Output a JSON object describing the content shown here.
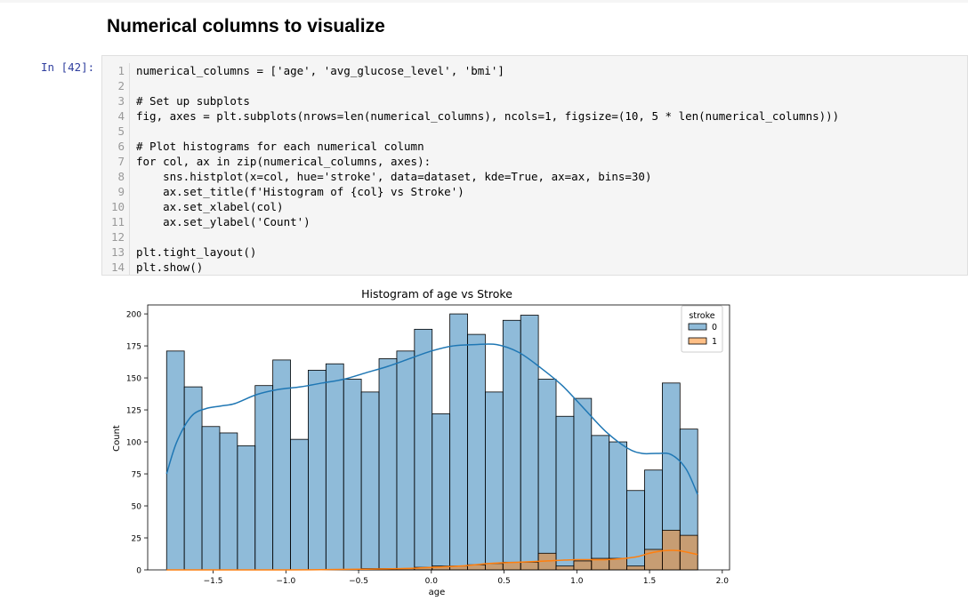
{
  "notebook": {
    "heading": "Numerical columns to visualize",
    "prompt": "In [42]:"
  },
  "code_cell": {
    "lines": [
      {
        "num": "1",
        "text": "numerical_columns = ['age', 'avg_glucose_level', 'bmi']"
      },
      {
        "num": "2",
        "text": ""
      },
      {
        "num": "3",
        "text": "# Set up subplots"
      },
      {
        "num": "4",
        "text": "fig, axes = plt.subplots(nrows=len(numerical_columns), ncols=1, figsize=(10, 5 * len(numerical_columns)))"
      },
      {
        "num": "5",
        "text": ""
      },
      {
        "num": "6",
        "text": "# Plot histograms for each numerical column"
      },
      {
        "num": "7",
        "text": "for col, ax in zip(numerical_columns, axes):"
      },
      {
        "num": "8",
        "text": "    sns.histplot(x=col, hue='stroke', data=dataset, kde=True, ax=ax, bins=30)"
      },
      {
        "num": "9",
        "text": "    ax.set_title(f'Histogram of {col} vs Stroke')"
      },
      {
        "num": "10",
        "text": "    ax.set_xlabel(col)"
      },
      {
        "num": "11",
        "text": "    ax.set_ylabel('Count')"
      },
      {
        "num": "12",
        "text": ""
      },
      {
        "num": "13",
        "text": "plt.tight_layout()"
      },
      {
        "num": "14",
        "text": "plt.show()"
      }
    ]
  },
  "chart_data": {
    "type": "bar",
    "title": "Histogram of age vs Stroke",
    "xlabel": "age",
    "ylabel": "Count",
    "xlim": [
      -1.95,
      2.05
    ],
    "ylim": [
      0,
      207
    ],
    "xticks": [
      -1.5,
      -1.0,
      -0.5,
      0.0,
      0.5,
      1.0,
      1.5,
      2.0
    ],
    "xtick_labels": [
      "−1.5",
      "−1.0",
      "−0.5",
      "0.0",
      "0.5",
      "1.0",
      "1.5",
      "2.0"
    ],
    "yticks": [
      0,
      25,
      50,
      75,
      100,
      125,
      150,
      175,
      200
    ],
    "ytick_labels": [
      "0",
      "25",
      "50",
      "75",
      "100",
      "125",
      "150",
      "175",
      "200"
    ],
    "bin_start": -1.82,
    "bin_width": 0.1217,
    "legend": {
      "title": "stroke",
      "entries": [
        "0",
        "1"
      ],
      "placement": "upper-right"
    },
    "series": [
      {
        "name": "0",
        "color": "#1f77b4",
        "values": [
          171,
          143,
          112,
          107,
          97,
          144,
          164,
          102,
          156,
          161,
          149,
          139,
          165,
          171,
          188,
          122,
          200,
          184,
          139,
          195,
          199,
          149,
          120,
          134,
          105,
          100,
          62,
          78,
          146,
          110
        ]
      },
      {
        "name": "1",
        "color": "#ff7f0e",
        "values": [
          0,
          0,
          0,
          0,
          0,
          0,
          0,
          0,
          0,
          0,
          0,
          1,
          1,
          1,
          2,
          3,
          3,
          4,
          5,
          6,
          6,
          13,
          3,
          7,
          9,
          9,
          3,
          16,
          31,
          27
        ]
      }
    ],
    "kde": [
      {
        "name": "0",
        "x": [
          -1.82,
          -1.75,
          -1.65,
          -1.55,
          -1.45,
          -1.35,
          -1.2,
          -1.05,
          -0.9,
          -0.75,
          -0.6,
          -0.45,
          -0.3,
          -0.15,
          0.0,
          0.15,
          0.3,
          0.45,
          0.6,
          0.75,
          0.9,
          1.05,
          1.2,
          1.35,
          1.45,
          1.55,
          1.65,
          1.75,
          1.83
        ],
        "y": [
          75,
          100,
          120,
          126,
          128,
          130,
          137,
          141,
          143,
          146,
          149,
          154,
          159,
          165,
          171,
          175,
          176,
          176,
          170,
          158,
          144,
          126,
          108,
          95,
          91,
          91,
          90,
          79,
          59
        ]
      },
      {
        "name": "1",
        "x": [
          -1.82,
          -1.5,
          -1.0,
          -0.5,
          -0.2,
          0.0,
          0.2,
          0.4,
          0.6,
          0.8,
          1.0,
          1.2,
          1.4,
          1.5,
          1.6,
          1.7,
          1.83
        ],
        "y": [
          0,
          0,
          0,
          0.5,
          1,
          2,
          3,
          5,
          6,
          7,
          8,
          8,
          10,
          13,
          15,
          15,
          12
        ]
      }
    ]
  }
}
